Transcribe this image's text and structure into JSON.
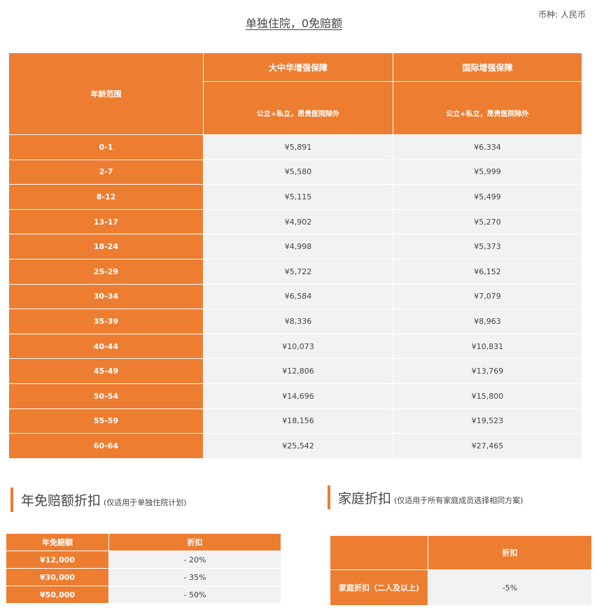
{
  "title": "单独住院，0免赔额",
  "currency": "币种: 人民币",
  "main_table": {
    "age_header": "年龄范围",
    "plans": [
      {
        "name": "大中华增强保障",
        "desc": "公立+私立，昂贵医院除外"
      },
      {
        "name": "国际增强保障",
        "desc": "公立+私立，昂贵医院除外"
      }
    ],
    "rows": [
      [
        "0-1",
        "¥5,891",
        "¥6,334"
      ],
      [
        "2-7",
        "¥5,580",
        "¥5,999"
      ],
      [
        "8-12",
        "¥5,115",
        "¥5,499"
      ],
      [
        "13-17",
        "¥4,902",
        "¥5,270"
      ],
      [
        "18-24",
        "¥4,998",
        "¥5,373"
      ],
      [
        "25-29",
        "¥5,722",
        "¥6,152"
      ],
      [
        "30-34",
        "¥6,584",
        "¥7,079"
      ],
      [
        "35-39",
        "¥8,336",
        "¥8,963"
      ],
      [
        "40-44",
        "¥10,073",
        "¥10,831"
      ],
      [
        "45-49",
        "¥12,806",
        "¥13,769"
      ],
      [
        "50-54",
        "¥14,696",
        "¥15,800"
      ],
      [
        "55-59",
        "¥18,156",
        "¥19,523"
      ],
      [
        "60-64",
        "¥25,542",
        "¥27,465"
      ]
    ]
  },
  "deductible": {
    "heading": "年免赔额折扣",
    "note": "(仅适用于单独住院计划)",
    "headers": [
      "年免赔额",
      "折扣"
    ],
    "rows": [
      [
        "¥12,000",
        "- 20%"
      ],
      [
        "¥30,000",
        "- 35%"
      ],
      [
        "¥50,000",
        "- 50%"
      ]
    ]
  },
  "family": {
    "heading": "家庭折扣",
    "note": "(仅适用于所有家庭成员选择相同方案)",
    "headers": [
      "",
      "折扣"
    ],
    "rows": [
      [
        "家庭折扣（二人及以上)",
        "-5%"
      ]
    ]
  },
  "colors": {
    "accent": "#ED7D31",
    "cell": "#F2F2F2"
  }
}
